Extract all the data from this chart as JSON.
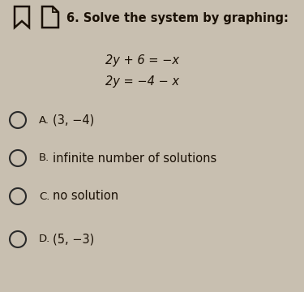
{
  "bg_color": "#c8bfb0",
  "title_number": "6.",
  "title_text": "Solve the system by graphing:",
  "equations": [
    "2y + 6 = −x",
    "2y = −4 − x"
  ],
  "options": [
    {
      "letter": "A.",
      "text": "(3, −4)"
    },
    {
      "letter": "B.",
      "text": "infinite number of solutions"
    },
    {
      "letter": "C.",
      "text": "no solution"
    },
    {
      "letter": "D.",
      "text": "(5, −3)"
    }
  ],
  "circle_color": "#2a2a2a",
  "text_color": "#1a1005",
  "title_fontsize": 10.5,
  "eq_fontsize": 10.5,
  "option_fontsize": 10.5
}
